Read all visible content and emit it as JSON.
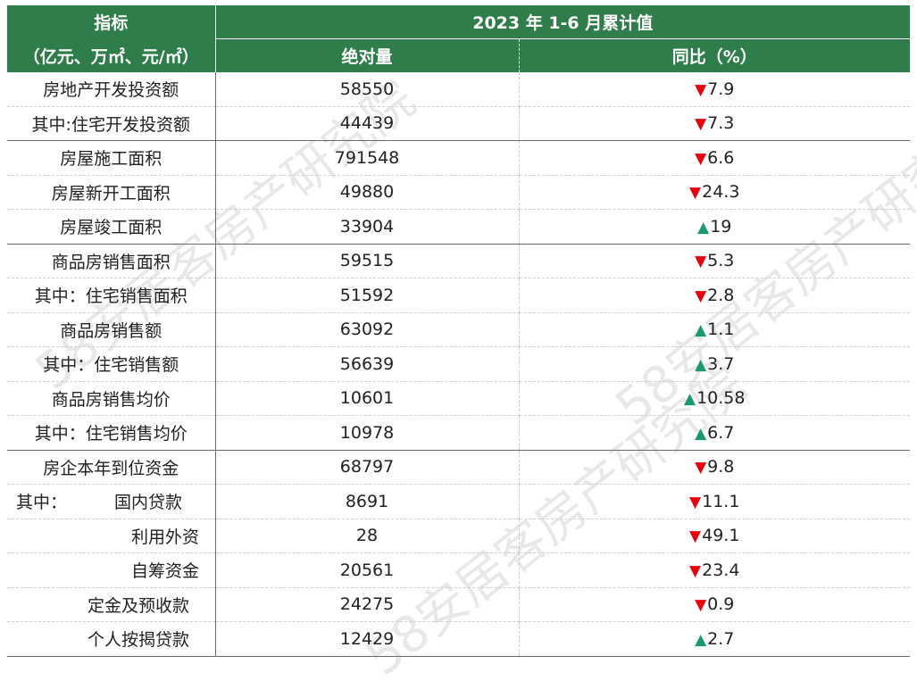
{
  "header": {
    "indicator_label": "指标",
    "unit_label": "（亿元、万㎡、元/㎡）",
    "period_label": "2023 年 1-6 月累计值",
    "absolute_label": "绝对量",
    "yoy_label": "同比（%）"
  },
  "rows": [
    {
      "label": "房地产开发投资额",
      "value": "58550",
      "yoy": "7.9",
      "trend": "down"
    },
    {
      "label": "其中:住宅开发投资额",
      "value": "44439",
      "yoy": "7.3",
      "trend": "down"
    },
    {
      "label": "房屋施工面积",
      "value": "791548",
      "yoy": "6.6",
      "trend": "down"
    },
    {
      "label": "房屋新开工面积",
      "value": "49880",
      "yoy": "24.3",
      "trend": "down"
    },
    {
      "label": "房屋竣工面积",
      "value": "33904",
      "yoy": "19",
      "trend": "up"
    },
    {
      "label": "商品房销售面积",
      "value": "59515",
      "yoy": "5.3",
      "trend": "down"
    },
    {
      "label": "其中：住宅销售面积",
      "value": "51592",
      "yoy": "2.8",
      "trend": "down"
    },
    {
      "label": "商品房销售额",
      "value": "63092",
      "yoy": "1.1",
      "trend": "up"
    },
    {
      "label": "其中：住宅销售额",
      "value": "56639",
      "yoy": "3.7",
      "trend": "up"
    },
    {
      "label": "商品房销售均价",
      "value": "10601",
      "yoy": "10.58",
      "trend": "up"
    },
    {
      "label": "其中：住宅销售均价",
      "value": "10978",
      "yoy": "6.7",
      "trend": "up"
    },
    {
      "label": "房企本年到位资金",
      "value": "68797",
      "yoy": "9.8",
      "trend": "down"
    },
    {
      "prefix": "其中：",
      "label": "国内贷款",
      "value": "8691",
      "yoy": "11.1",
      "trend": "down"
    },
    {
      "label": "利用外资",
      "value": "28",
      "yoy": "49.1",
      "trend": "down"
    },
    {
      "label": "自筹资金",
      "value": "20561",
      "yoy": "23.4",
      "trend": "down"
    },
    {
      "label": "定金及预收款",
      "value": "24275",
      "yoy": "0.9",
      "trend": "down"
    },
    {
      "label": "个人按揭贷款",
      "value": "12429",
      "yoy": "2.7",
      "trend": "up"
    }
  ],
  "arrows": {
    "down": "▼",
    "up": "▲"
  },
  "colors": {
    "header_bg": "#2e7d4a",
    "down": "#e8000b",
    "up": "#1a9a6c"
  },
  "watermark": "58安居客房产研究院"
}
